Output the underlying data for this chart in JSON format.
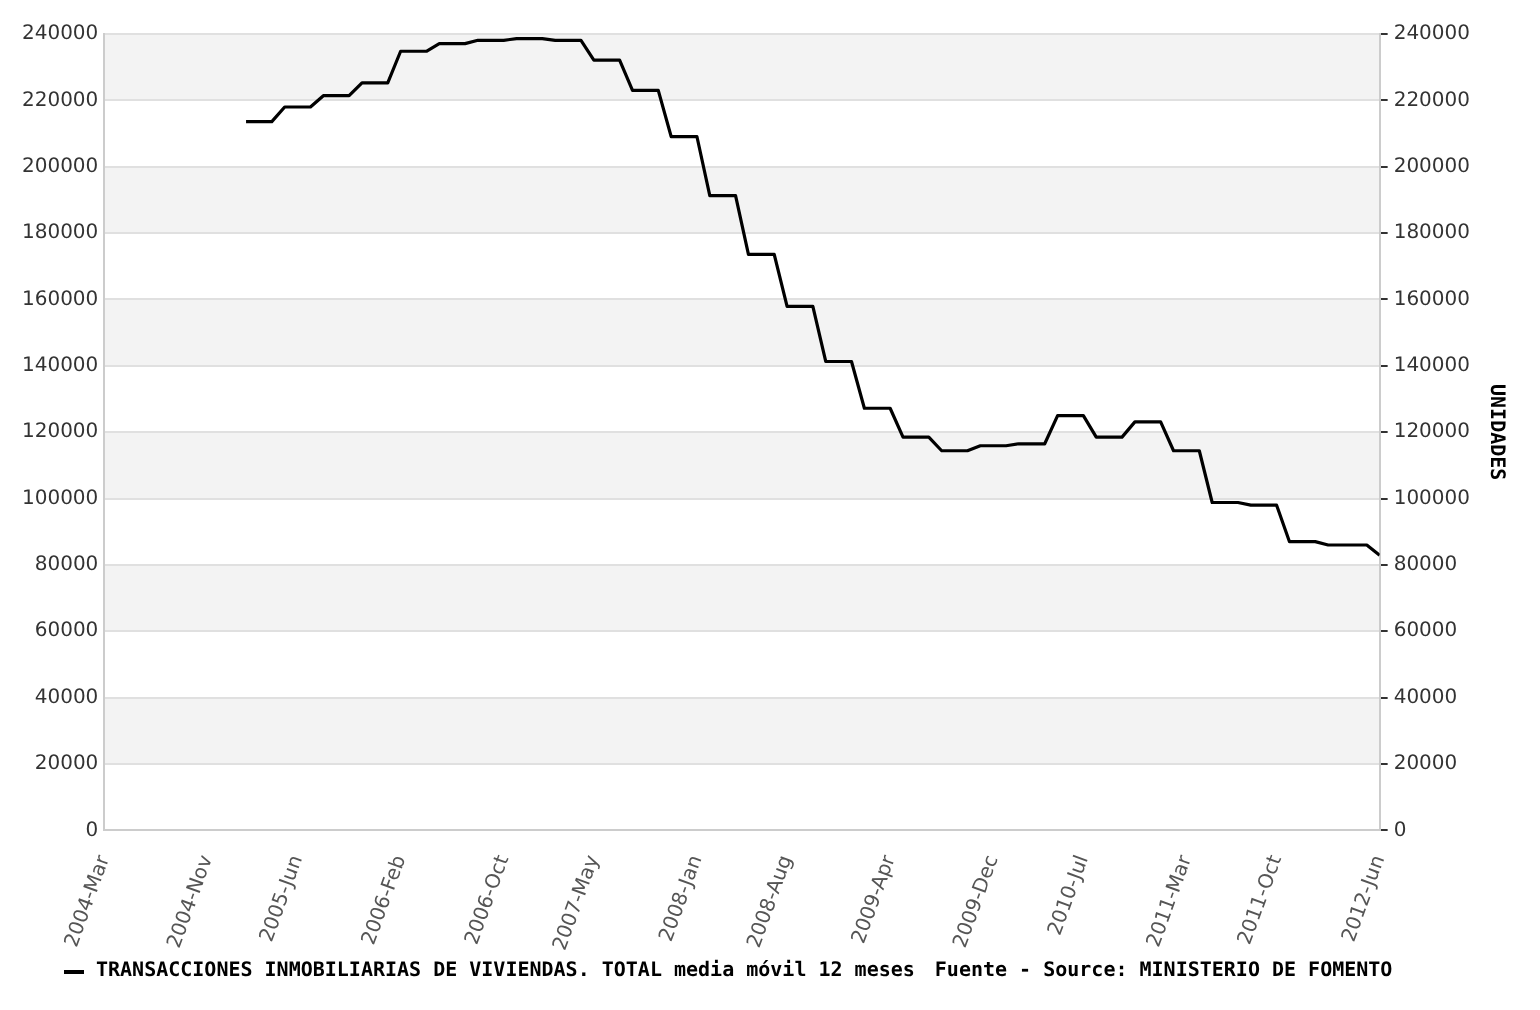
{
  "chart_data": {
    "type": "line",
    "y2label": "UNIDADES",
    "legend": "bottom",
    "grid": "y",
    "marker": "none",
    "line_style": "solid",
    "annotations": [
      "Fuente - Source: MINISTERIO DE FOMENTO"
    ],
    "xlim": [
      "2004-03",
      "2012-06"
    ],
    "xticks": [
      {
        "value": "2004-03",
        "label": "2004-Mar"
      },
      {
        "value": "2004-11",
        "label": "2004-Nov"
      },
      {
        "value": "2005-06",
        "label": "2005-Jun"
      },
      {
        "value": "2006-02",
        "label": "2006-Feb"
      },
      {
        "value": "2006-10",
        "label": "2006-Oct"
      },
      {
        "value": "2007-05",
        "label": "2007-May"
      },
      {
        "value": "2008-01",
        "label": "2008-Jan"
      },
      {
        "value": "2008-08",
        "label": "2008-Aug"
      },
      {
        "value": "2009-04",
        "label": "2009-Apr"
      },
      {
        "value": "2009-12",
        "label": "2009-Dec"
      },
      {
        "value": "2010-07",
        "label": "2010-Jul"
      },
      {
        "value": "2011-03",
        "label": "2011-Mar"
      },
      {
        "value": "2011-10",
        "label": "2011-Oct"
      },
      {
        "value": "2012-06",
        "label": "2012-Jun"
      }
    ],
    "ylim": [
      0,
      240000
    ],
    "yticks": [
      0,
      20000,
      40000,
      60000,
      80000,
      100000,
      120000,
      140000,
      160000,
      180000,
      200000,
      220000,
      240000
    ],
    "y2lim": [
      0,
      240000
    ],
    "y2ticks": [
      0,
      20000,
      40000,
      60000,
      80000,
      100000,
      120000,
      140000,
      160000,
      180000,
      200000,
      220000,
      240000
    ],
    "series": [
      {
        "name": "TRANSACCIONES INMOBILIARIAS DE VIVIENDAS. TOTAL media móvil 12 meses",
        "color": "#000000",
        "x": [
          "2005-02",
          "2005-04",
          "2005-05",
          "2005-07",
          "2005-08",
          "2005-10",
          "2005-11",
          "2006-01",
          "2006-02",
          "2006-04",
          "2006-05",
          "2006-07",
          "2006-08",
          "2006-10",
          "2006-11",
          "2007-01",
          "2007-02",
          "2007-04",
          "2007-05",
          "2007-07",
          "2007-08",
          "2007-10",
          "2007-11",
          "2008-01",
          "2008-02",
          "2008-04",
          "2008-05",
          "2008-07",
          "2008-08",
          "2008-10",
          "2008-11",
          "2009-01",
          "2009-02",
          "2009-04",
          "2009-05",
          "2009-07",
          "2009-08",
          "2009-10",
          "2009-11",
          "2010-01",
          "2010-02",
          "2010-04",
          "2010-05",
          "2010-07",
          "2010-08",
          "2010-10",
          "2010-11",
          "2011-01",
          "2011-02",
          "2011-04",
          "2011-05",
          "2011-07",
          "2011-08",
          "2011-10",
          "2011-11",
          "2012-01",
          "2012-02",
          "2012-05",
          "2012-06"
        ],
        "values": [
          213600,
          213600,
          218000,
          218000,
          221400,
          221400,
          225300,
          225300,
          234800,
          234800,
          237100,
          237100,
          238100,
          238100,
          238600,
          238600,
          238100,
          238100,
          232100,
          232100,
          223000,
          223000,
          209100,
          209100,
          191300,
          191300,
          173600,
          173600,
          157900,
          157900,
          141300,
          141300,
          127200,
          127200,
          118500,
          118500,
          114400,
          114400,
          115900,
          115900,
          116500,
          116500,
          125000,
          125000,
          118500,
          118500,
          123100,
          123100,
          114400,
          114400,
          98800,
          98800,
          98000,
          98000,
          87000,
          87000,
          86000,
          86000,
          82900
        ]
      }
    ]
  }
}
